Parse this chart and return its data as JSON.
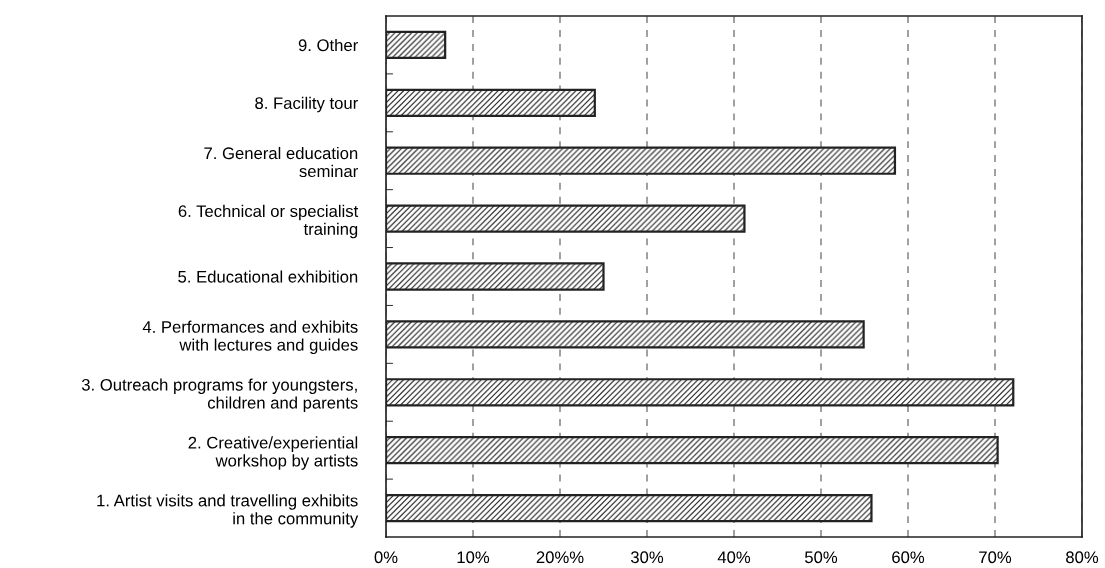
{
  "chart_data": {
    "type": "bar",
    "orientation": "horizontal",
    "categories": [
      "9. Other",
      "8. Facility tour",
      "7. General education\nseminar",
      "6. Technical or specialist\ntraining",
      "5. Educational exhibition",
      "4. Performances and exhibits\nwith lectures and guides",
      "3. Outreach programs for youngsters,\nchildren and parents",
      "2. Creative/experiential\nworkshop by artists",
      "1. Artist visits and travelling exhibits\nin the community"
    ],
    "values": [
      6.8,
      24.0,
      58.5,
      41.2,
      25.0,
      54.9,
      72.1,
      70.3,
      55.8
    ],
    "color": "#222222",
    "xlim": [
      0,
      80
    ],
    "xticks": [
      {
        "value": 0,
        "label": "0%"
      },
      {
        "value": 10,
        "label": "10%"
      },
      {
        "value": 20,
        "label": "20%%"
      },
      {
        "value": 30,
        "label": "30%"
      },
      {
        "value": 40,
        "label": "40%"
      },
      {
        "value": 50,
        "label": "50%"
      },
      {
        "value": 60,
        "label": "60%"
      },
      {
        "value": 70,
        "label": "70%"
      },
      {
        "value": 80,
        "label": "80%"
      }
    ],
    "grid": "x",
    "line_style": "dashed",
    "legend": false
  }
}
